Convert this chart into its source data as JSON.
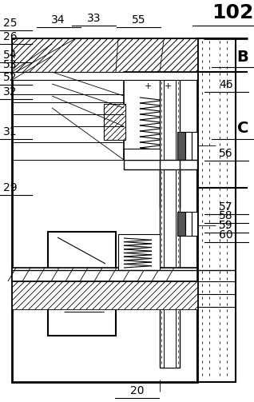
{
  "bg_color": "#ffffff",
  "line_color": "#000000",
  "fig_width": 3.18,
  "fig_height": 5.03,
  "dpi": 100,
  "labels": {
    "102": [
      0.915,
      0.968,
      18,
      "bold"
    ],
    "B": [
      0.955,
      0.858,
      14,
      "bold"
    ],
    "C": [
      0.955,
      0.68,
      14,
      "bold"
    ],
    "25": [
      0.04,
      0.942,
      10,
      "normal"
    ],
    "26": [
      0.04,
      0.908,
      10,
      "normal"
    ],
    "54": [
      0.04,
      0.862,
      10,
      "normal"
    ],
    "53": [
      0.04,
      0.838,
      10,
      "normal"
    ],
    "52": [
      0.04,
      0.808,
      10,
      "normal"
    ],
    "32": [
      0.04,
      0.772,
      10,
      "normal"
    ],
    "31": [
      0.04,
      0.672,
      10,
      "normal"
    ],
    "29": [
      0.04,
      0.532,
      10,
      "normal"
    ],
    "34": [
      0.23,
      0.95,
      10,
      "normal"
    ],
    "33": [
      0.37,
      0.955,
      10,
      "normal"
    ],
    "55": [
      0.545,
      0.95,
      10,
      "normal"
    ],
    "46": [
      0.89,
      0.79,
      10,
      "normal"
    ],
    "56": [
      0.89,
      0.618,
      10,
      "normal"
    ],
    "57": [
      0.89,
      0.486,
      10,
      "normal"
    ],
    "58": [
      0.89,
      0.464,
      10,
      "normal"
    ],
    "59": [
      0.89,
      0.44,
      10,
      "normal"
    ],
    "60": [
      0.89,
      0.416,
      10,
      "normal"
    ],
    "20": [
      0.54,
      0.028,
      10,
      "normal"
    ]
  }
}
